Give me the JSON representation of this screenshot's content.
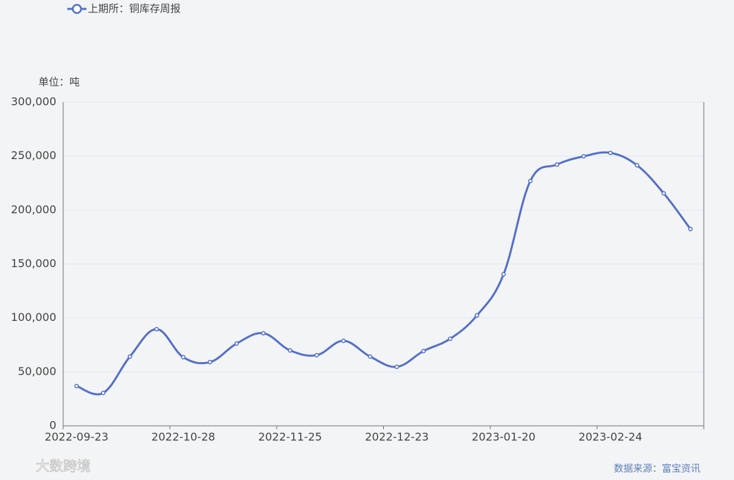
{
  "chart_data": {
    "type": "line",
    "legend": "上期所：铜库存周报",
    "unit_label": "单位：吨",
    "source": "数据来源：富宝资讯",
    "watermark": "大数跨境",
    "categories": [
      "2022-09-23",
      null,
      null,
      null,
      "2022-10-28",
      null,
      null,
      null,
      "2022-11-25",
      null,
      null,
      null,
      "2022-12-23",
      null,
      null,
      null,
      "2023-01-20",
      null,
      null,
      null,
      "2023-02-24",
      null,
      null,
      null
    ],
    "series": [
      {
        "name": "上期所：铜库存周报",
        "color": "#5470c6",
        "values": [
          36900,
          30500,
          64200,
          89600,
          63600,
          59100,
          76300,
          85800,
          69900,
          65500,
          78800,
          64200,
          54700,
          69300,
          80700,
          102300,
          140500,
          226900,
          242200,
          249800,
          253000,
          241500,
          215500,
          182400
        ]
      }
    ],
    "ylim": [
      0,
      300000
    ],
    "yticks": [
      0,
      {
        "value": 50000,
        "label": "50,000"
      },
      {
        "value": 100000,
        "label": "100,000"
      },
      {
        "value": 150000,
        "label": "150,000"
      },
      {
        "value": 200000,
        "label": "200,000"
      },
      {
        "value": 250000,
        "label": "250,000"
      },
      {
        "value": 300000,
        "label": "300,000"
      }
    ],
    "grid": true
  }
}
